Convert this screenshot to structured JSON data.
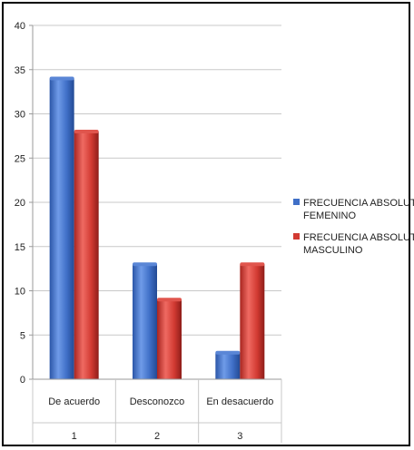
{
  "chart_data": {
    "type": "bar",
    "categories": [
      "De acuerdo",
      "Desconozco",
      "En desacuerdo"
    ],
    "category_numbers": [
      "1",
      "2",
      "3"
    ],
    "series": [
      {
        "name_lines": [
          "FRECUENCIA ABSOLUTA",
          "FEMENINO"
        ],
        "values": [
          34,
          13,
          3
        ],
        "color": "#3f6fc7"
      },
      {
        "name_lines": [
          "FRECUENCIA ABSOLUTA",
          "MASCULINO"
        ],
        "values": [
          28,
          9,
          13
        ],
        "color": "#d23a32"
      }
    ],
    "yticks": [
      "0",
      "5",
      "10",
      "15",
      "20",
      "25",
      "30",
      "35",
      "40"
    ],
    "ylim": [
      0,
      40
    ],
    "grid": true,
    "legend_position": "right",
    "style": "3d-cylinder-bars"
  }
}
